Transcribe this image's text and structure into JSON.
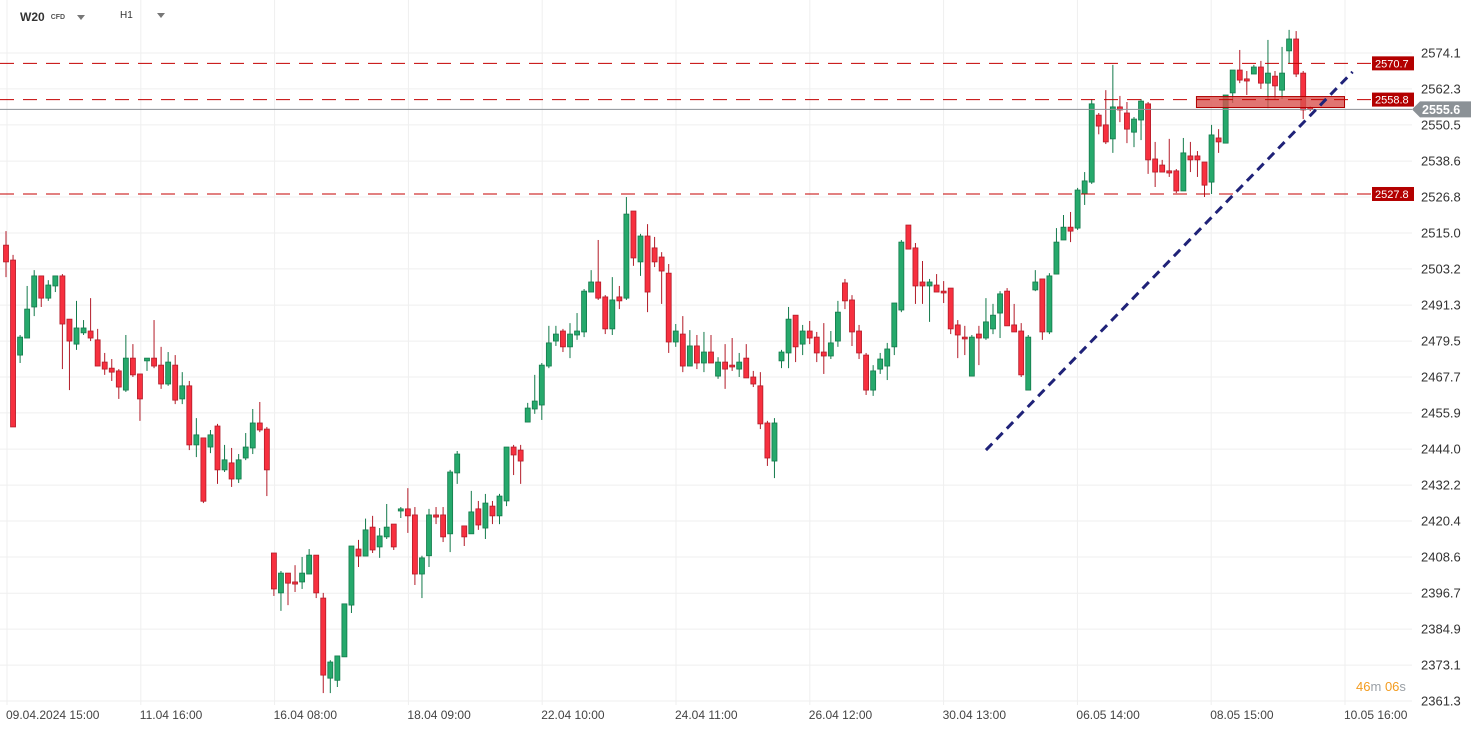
{
  "header": {
    "symbol": "W20",
    "instrument_type": "CFD",
    "timeframe": "H1"
  },
  "timer": {
    "minutes": "46",
    "m": "m",
    "seconds": "06",
    "s": "s"
  },
  "colors": {
    "up": "#26a96c",
    "up_border": "#137a4b",
    "down": "#f7303f",
    "down_border": "#b31b28",
    "level": "#c40000",
    "trend": "#1f2278",
    "last": "#8b9196",
    "zone": "#d9534f"
  },
  "chart_data": {
    "type": "candlestick",
    "title": "W20 CFD H1",
    "ylim": [
      2361.3,
      2574.1
    ],
    "y_ticks": [
      "2574.1",
      "2562.3",
      "2550.5",
      "2538.6",
      "2526.8",
      "2515.0",
      "2503.2",
      "2491.3",
      "2479.5",
      "2467.7",
      "2455.9",
      "2444.0",
      "2432.2",
      "2420.4",
      "2408.6",
      "2396.7",
      "2384.9",
      "2373.1",
      "2361.3"
    ],
    "x_ticks": [
      "09.04.2024 15:00",
      "11.04 16:00",
      "16.04 08:00",
      "18.04 09:00",
      "22.04 10:00",
      "24.04 11:00",
      "26.04 12:00",
      "30.04 13:00",
      "06.05 14:00",
      "08.05 15:00",
      "10.05 16:00"
    ],
    "grid": true,
    "levels": [
      {
        "label": "2570.7",
        "price": 2570.7
      },
      {
        "label": "2558.8",
        "price": 2558.8
      },
      {
        "label": "2527.8",
        "price": 2527.8
      }
    ],
    "last_price": {
      "label": "2555.6",
      "price": 2555.6
    },
    "zone": {
      "price_top": 2559.8,
      "price_bottom": 2556.2,
      "from_index": 169,
      "to_index": 190
    },
    "trendline": {
      "from_index": 139,
      "from_price": 2443.7,
      "to_index": 191,
      "to_price": 2567.9
    },
    "ohlc": [
      [
        2511.0,
        2515.6,
        2500.5,
        2505.5
      ],
      [
        2506.1,
        2507.8,
        2451.3,
        2451.3
      ],
      [
        2474.9,
        2481.5,
        2472.3,
        2480.8
      ],
      [
        2480.5,
        2497.6,
        2480.5,
        2490.0
      ],
      [
        2490.7,
        2502.8,
        2487.7,
        2500.9
      ],
      [
        2500.9,
        2500.9,
        2490.7,
        2493.6
      ],
      [
        2493.6,
        2499.5,
        2492.7,
        2497.9
      ],
      [
        2497.6,
        2500.9,
        2495.6,
        2500.9
      ],
      [
        2500.9,
        2501.5,
        2470.3,
        2485.1
      ],
      [
        2486.7,
        2486.7,
        2463.4,
        2479.5
      ],
      [
        2478.5,
        2492.7,
        2476.6,
        2483.8
      ],
      [
        2482.2,
        2486.4,
        2481.5,
        2483.8
      ],
      [
        2482.8,
        2493.6,
        2479.5,
        2480.5
      ],
      [
        2479.9,
        2483.5,
        2471.3,
        2471.3
      ],
      [
        2472.6,
        2475.6,
        2468.4,
        2470.3
      ],
      [
        2470.6,
        2473.6,
        2466.4,
        2469.3
      ],
      [
        2469.7,
        2470.3,
        2460.5,
        2464.4
      ],
      [
        2463.4,
        2481.5,
        2462.8,
        2473.9
      ],
      [
        2473.9,
        2478.5,
        2467.7,
        2468.4
      ],
      [
        2468.7,
        2468.7,
        2453.3,
        2460.5
      ],
      [
        2473.0,
        2473.9,
        2469.7,
        2473.9
      ],
      [
        2473.9,
        2486.4,
        2470.6,
        2471.3
      ],
      [
        2471.6,
        2477.6,
        2463.8,
        2465.4
      ],
      [
        2465.4,
        2475.9,
        2464.8,
        2472.6
      ],
      [
        2471.6,
        2474.9,
        2458.8,
        2460.1
      ],
      [
        2460.5,
        2469.3,
        2458.8,
        2464.8
      ],
      [
        2464.8,
        2466.4,
        2443.7,
        2445.4
      ],
      [
        2445.4,
        2454.2,
        2441.4,
        2448.7
      ],
      [
        2447.7,
        2447.7,
        2426.3,
        2426.9
      ],
      [
        2444.7,
        2450.3,
        2442.7,
        2448.7
      ],
      [
        2451.6,
        2452.3,
        2432.6,
        2437.2
      ],
      [
        2437.2,
        2445.4,
        2436.5,
        2440.5
      ],
      [
        2439.5,
        2444.4,
        2431.6,
        2434.2
      ],
      [
        2434.2,
        2442.4,
        2432.9,
        2440.5
      ],
      [
        2441.1,
        2449.3,
        2440.4,
        2444.7
      ],
      [
        2444.4,
        2457.2,
        2442.4,
        2452.6
      ],
      [
        2452.6,
        2459.5,
        2449.6,
        2450.3
      ],
      [
        2450.6,
        2451.3,
        2428.6,
        2437.2
      ],
      [
        2409.9,
        2409.9,
        2395.8,
        2398.1
      ],
      [
        2396.8,
        2404.0,
        2390.9,
        2403.3
      ],
      [
        2403.3,
        2403.3,
        2392.8,
        2400.0
      ],
      [
        2400.4,
        2405.9,
        2397.1,
        2399.7
      ],
      [
        2400.4,
        2408.6,
        2398.1,
        2403.3
      ],
      [
        2403.0,
        2411.2,
        2403.0,
        2409.2
      ],
      [
        2409.2,
        2409.2,
        2395.1,
        2396.8
      ],
      [
        2395.1,
        2396.8,
        2363.9,
        2369.8
      ],
      [
        2368.8,
        2374.7,
        2363.9,
        2374.1
      ],
      [
        2368.1,
        2376.1,
        2365.9,
        2376.1
      ],
      [
        2375.8,
        2393.2,
        2375.8,
        2393.2
      ],
      [
        2392.8,
        2412.2,
        2390.2,
        2412.2
      ],
      [
        2411.2,
        2414.2,
        2405.3,
        2408.9
      ],
      [
        2408.9,
        2421.2,
        2408.9,
        2417.5
      ],
      [
        2418.4,
        2422.1,
        2409.9,
        2410.9
      ],
      [
        2411.9,
        2418.1,
        2408.3,
        2415.5
      ],
      [
        2415.2,
        2426.0,
        2414.5,
        2418.4
      ],
      [
        2419.4,
        2419.4,
        2410.9,
        2411.9
      ],
      [
        2423.7,
        2425.0,
        2421.4,
        2424.4
      ],
      [
        2424.4,
        2431.2,
        2416.5,
        2422.1
      ],
      [
        2422.4,
        2425.0,
        2399.4,
        2403.0
      ],
      [
        2403.0,
        2409.0,
        2395.1,
        2408.3
      ],
      [
        2409.0,
        2424.4,
        2405.3,
        2422.4
      ],
      [
        2422.4,
        2425.0,
        2419.4,
        2421.7
      ],
      [
        2422.4,
        2425.0,
        2413.5,
        2415.2
      ],
      [
        2416.2,
        2437.2,
        2410.2,
        2436.5
      ],
      [
        2436.2,
        2443.4,
        2432.6,
        2442.4
      ],
      [
        2418.8,
        2418.8,
        2412.2,
        2415.2
      ],
      [
        2416.2,
        2430.3,
        2416.2,
        2423.4
      ],
      [
        2424.4,
        2427.0,
        2417.5,
        2419.1
      ],
      [
        2418.1,
        2429.3,
        2414.5,
        2426.3
      ],
      [
        2425.3,
        2427.0,
        2419.4,
        2422.1
      ],
      [
        2422.1,
        2429.3,
        2419.4,
        2428.6
      ],
      [
        2427.0,
        2444.7,
        2425.3,
        2444.7
      ],
      [
        2444.7,
        2445.4,
        2435.5,
        2442.1
      ],
      [
        2443.7,
        2445.4,
        2432.6,
        2440.1
      ],
      [
        2452.9,
        2459.2,
        2452.9,
        2457.5
      ],
      [
        2457.2,
        2468.4,
        2455.6,
        2459.8
      ],
      [
        2458.5,
        2472.3,
        2453.6,
        2471.6
      ],
      [
        2471.3,
        2484.5,
        2470.6,
        2478.9
      ],
      [
        2479.5,
        2484.5,
        2477.9,
        2481.8
      ],
      [
        2482.8,
        2483.5,
        2475.9,
        2477.6
      ],
      [
        2477.6,
        2485.4,
        2473.9,
        2481.8
      ],
      [
        2481.5,
        2488.7,
        2479.9,
        2482.8
      ],
      [
        2482.5,
        2496.6,
        2480.8,
        2495.9
      ],
      [
        2495.6,
        2502.8,
        2495.6,
        2498.9
      ],
      [
        2498.9,
        2512.7,
        2493.0,
        2493.6
      ],
      [
        2494.0,
        2494.6,
        2481.8,
        2483.5
      ],
      [
        2483.5,
        2500.5,
        2481.5,
        2493.0
      ],
      [
        2494.0,
        2497.6,
        2490.0,
        2492.7
      ],
      [
        2493.6,
        2526.8,
        2493.0,
        2521.2
      ],
      [
        2522.2,
        2522.2,
        2504.2,
        2506.8
      ],
      [
        2505.5,
        2514.7,
        2500.9,
        2514.0
      ],
      [
        2514.0,
        2517.9,
        2489.0,
        2495.6
      ],
      [
        2510.1,
        2513.7,
        2503.8,
        2505.5
      ],
      [
        2507.1,
        2508.7,
        2491.7,
        2502.5
      ],
      [
        2501.8,
        2504.8,
        2475.6,
        2479.2
      ],
      [
        2479.2,
        2485.1,
        2477.6,
        2482.8
      ],
      [
        2481.8,
        2487.7,
        2469.3,
        2471.3
      ],
      [
        2471.3,
        2483.1,
        2471.3,
        2477.9
      ],
      [
        2477.9,
        2481.5,
        2470.3,
        2472.3
      ],
      [
        2472.3,
        2482.5,
        2469.3,
        2475.9
      ],
      [
        2475.9,
        2481.5,
        2472.3,
        2472.3
      ],
      [
        2468.0,
        2474.2,
        2467.1,
        2472.6
      ],
      [
        2472.6,
        2478.5,
        2463.8,
        2470.3
      ],
      [
        2471.6,
        2480.5,
        2469.7,
        2471.0
      ],
      [
        2470.3,
        2475.6,
        2467.7,
        2472.6
      ],
      [
        2473.9,
        2478.5,
        2467.4,
        2467.4
      ],
      [
        2467.7,
        2469.7,
        2464.4,
        2465.4
      ],
      [
        2464.8,
        2469.3,
        2450.6,
        2452.3
      ],
      [
        2452.6,
        2453.3,
        2438.5,
        2441.1
      ],
      [
        2440.1,
        2454.2,
        2434.5,
        2452.6
      ],
      [
        2473.0,
        2476.6,
        2470.6,
        2475.9
      ],
      [
        2475.6,
        2490.7,
        2470.6,
        2486.7
      ],
      [
        2488.0,
        2488.0,
        2472.6,
        2477.6
      ],
      [
        2478.5,
        2484.8,
        2474.9,
        2482.8
      ],
      [
        2482.8,
        2486.1,
        2478.5,
        2480.5
      ],
      [
        2480.8,
        2482.5,
        2472.6,
        2475.6
      ],
      [
        2475.9,
        2485.4,
        2468.7,
        2474.6
      ],
      [
        2474.6,
        2482.8,
        2473.6,
        2478.9
      ],
      [
        2479.5,
        2492.7,
        2477.6,
        2489.0
      ],
      [
        2498.6,
        2499.9,
        2490.0,
        2492.7
      ],
      [
        2493.0,
        2494.6,
        2477.9,
        2482.5
      ],
      [
        2482.8,
        2484.8,
        2473.6,
        2475.6
      ],
      [
        2474.9,
        2475.6,
        2461.8,
        2463.4
      ],
      [
        2463.4,
        2471.6,
        2461.5,
        2469.7
      ],
      [
        2470.3,
        2475.6,
        2468.7,
        2473.6
      ],
      [
        2471.3,
        2478.9,
        2466.7,
        2476.9
      ],
      [
        2477.6,
        2492.0,
        2474.9,
        2492.0
      ],
      [
        2489.7,
        2512.7,
        2489.0,
        2512.0
      ],
      [
        2517.6,
        2517.6,
        2509.7,
        2509.7
      ],
      [
        2510.1,
        2511.7,
        2491.7,
        2497.6
      ],
      [
        2498.9,
        2505.8,
        2491.7,
        2497.6
      ],
      [
        2497.6,
        2499.9,
        2485.8,
        2498.9
      ],
      [
        2497.9,
        2501.5,
        2495.6,
        2495.6
      ],
      [
        2495.9,
        2499.2,
        2492.0,
        2495.3
      ],
      [
        2496.9,
        2496.9,
        2481.8,
        2483.5
      ],
      [
        2484.8,
        2486.4,
        2473.9,
        2481.5
      ],
      [
        2480.8,
        2484.5,
        2474.9,
        2480.2
      ],
      [
        2468.0,
        2481.5,
        2468.0,
        2480.8
      ],
      [
        2481.8,
        2484.5,
        2471.6,
        2480.5
      ],
      [
        2480.5,
        2493.6,
        2479.9,
        2485.8
      ],
      [
        2483.5,
        2491.7,
        2481.8,
        2488.0
      ],
      [
        2488.7,
        2495.9,
        2480.5,
        2495.0
      ],
      [
        2495.9,
        2496.9,
        2484.5,
        2484.5
      ],
      [
        2484.8,
        2491.7,
        2482.5,
        2482.5
      ],
      [
        2482.8,
        2485.4,
        2467.7,
        2468.4
      ],
      [
        2463.4,
        2481.5,
        2463.4,
        2480.8
      ],
      [
        2496.3,
        2502.8,
        2495.9,
        2498.9
      ],
      [
        2499.9,
        2499.9,
        2479.9,
        2482.5
      ],
      [
        2482.5,
        2501.8,
        2481.8,
        2500.9
      ],
      [
        2501.5,
        2516.6,
        2501.5,
        2512.0
      ],
      [
        2512.7,
        2520.9,
        2512.7,
        2516.9
      ],
      [
        2516.9,
        2521.9,
        2512.0,
        2515.6
      ],
      [
        2516.6,
        2529.8,
        2516.0,
        2529.1
      ],
      [
        2527.8,
        2535.0,
        2524.2,
        2532.1
      ],
      [
        2531.7,
        2559.0,
        2531.1,
        2557.4
      ],
      [
        2553.7,
        2554.4,
        2547.4,
        2550.1
      ],
      [
        2550.5,
        2561.9,
        2544.2,
        2544.9
      ],
      [
        2545.9,
        2570.2,
        2541.3,
        2556.4
      ],
      [
        2556.4,
        2560.0,
        2551.4,
        2555.4
      ],
      [
        2554.4,
        2558.0,
        2544.5,
        2549.1
      ],
      [
        2548.1,
        2553.1,
        2543.2,
        2552.4
      ],
      [
        2552.1,
        2559.0,
        2545.5,
        2558.3
      ],
      [
        2557.4,
        2558.0,
        2534.4,
        2539.0
      ],
      [
        2539.3,
        2544.9,
        2530.1,
        2535.0
      ],
      [
        2537.3,
        2539.0,
        2535.0,
        2535.0
      ],
      [
        2535.4,
        2545.9,
        2533.4,
        2534.7
      ],
      [
        2535.4,
        2536.0,
        2528.1,
        2528.8
      ],
      [
        2528.8,
        2546.2,
        2528.8,
        2541.3
      ],
      [
        2540.3,
        2544.9,
        2535.0,
        2539.0
      ],
      [
        2540.3,
        2541.9,
        2533.4,
        2539.0
      ],
      [
        2538.3,
        2538.3,
        2526.8,
        2530.7
      ],
      [
        2531.7,
        2550.5,
        2527.8,
        2547.2
      ],
      [
        2546.2,
        2549.1,
        2541.3,
        2544.9
      ],
      [
        2544.5,
        2560.3,
        2544.5,
        2560.3
      ],
      [
        2561.0,
        2568.5,
        2557.7,
        2568.5
      ],
      [
        2568.5,
        2575.1,
        2564.2,
        2565.2
      ],
      [
        2565.6,
        2568.2,
        2560.3,
        2564.9
      ],
      [
        2567.2,
        2570.2,
        2567.2,
        2569.5
      ],
      [
        2569.5,
        2571.5,
        2562.3,
        2564.2
      ],
      [
        2564.2,
        2578.4,
        2556.0,
        2567.5
      ],
      [
        2566.5,
        2568.2,
        2558.7,
        2563.3
      ],
      [
        2561.9,
        2576.1,
        2559.0,
        2567.5
      ],
      [
        2574.8,
        2581.7,
        2570.5,
        2578.7
      ],
      [
        2578.7,
        2581.3,
        2566.2,
        2567.2
      ],
      [
        2567.5,
        2568.2,
        2552.4,
        2555.4
      ],
      [
        2556.2,
        2556.6,
        2555.0,
        2555.6
      ]
    ]
  }
}
